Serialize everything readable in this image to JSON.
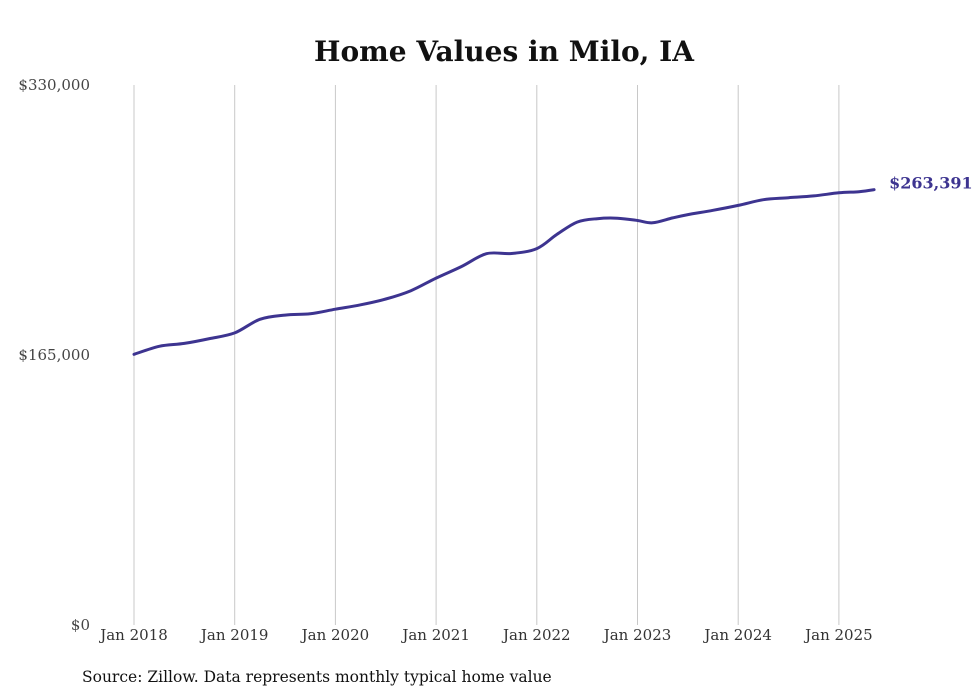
{
  "chart_data": {
    "type": "line",
    "title": "Home Values in Milo, IA",
    "ylim": [
      0,
      330000
    ],
    "y_ticks": [
      {
        "value": 330000,
        "label": "$330,000"
      },
      {
        "value": 165000,
        "label": "$165,000"
      },
      {
        "value": 0,
        "label": "$0"
      }
    ],
    "x_ticks": [
      {
        "value": 2018.0,
        "label": "Jan 2018"
      },
      {
        "value": 2019.0,
        "label": "Jan 2019"
      },
      {
        "value": 2020.0,
        "label": "Jan 2020"
      },
      {
        "value": 2021.0,
        "label": "Jan 2021"
      },
      {
        "value": 2022.0,
        "label": "Jan 2022"
      },
      {
        "value": 2023.0,
        "label": "Jan 2023"
      },
      {
        "value": 2024.0,
        "label": "Jan 2024"
      },
      {
        "value": 2025.0,
        "label": "Jan 2025"
      }
    ],
    "xlim": [
      2018.0,
      2025.35
    ],
    "grid": "vertical",
    "color": "#3d3490",
    "end_label": "$263,391",
    "series": [
      {
        "x": [
          2018.0,
          2018.25,
          2018.5,
          2018.75,
          2019.0,
          2019.25,
          2019.5,
          2019.75,
          2020.0,
          2020.25,
          2020.5,
          2020.75,
          2021.0,
          2021.25,
          2021.5,
          2021.75,
          2022.0,
          2022.2,
          2022.4,
          2022.6,
          2022.8,
          2023.0,
          2023.15,
          2023.35,
          2023.5,
          2023.75,
          2024.0,
          2024.25,
          2024.5,
          2024.75,
          2025.0,
          2025.2,
          2025.35
        ],
        "y": [
          165400,
          170300,
          172100,
          175000,
          178500,
          186800,
          189400,
          190200,
          193000,
          195700,
          199200,
          204300,
          212000,
          219000,
          226900,
          227000,
          230000,
          238700,
          246200,
          248300,
          248600,
          247200,
          245800,
          248800,
          250800,
          253400,
          256400,
          259900,
          261100,
          262200,
          264100,
          264800,
          266000
        ]
      }
    ]
  },
  "footer": {
    "source": "Source: Zillow. Data represents monthly typical home value"
  }
}
